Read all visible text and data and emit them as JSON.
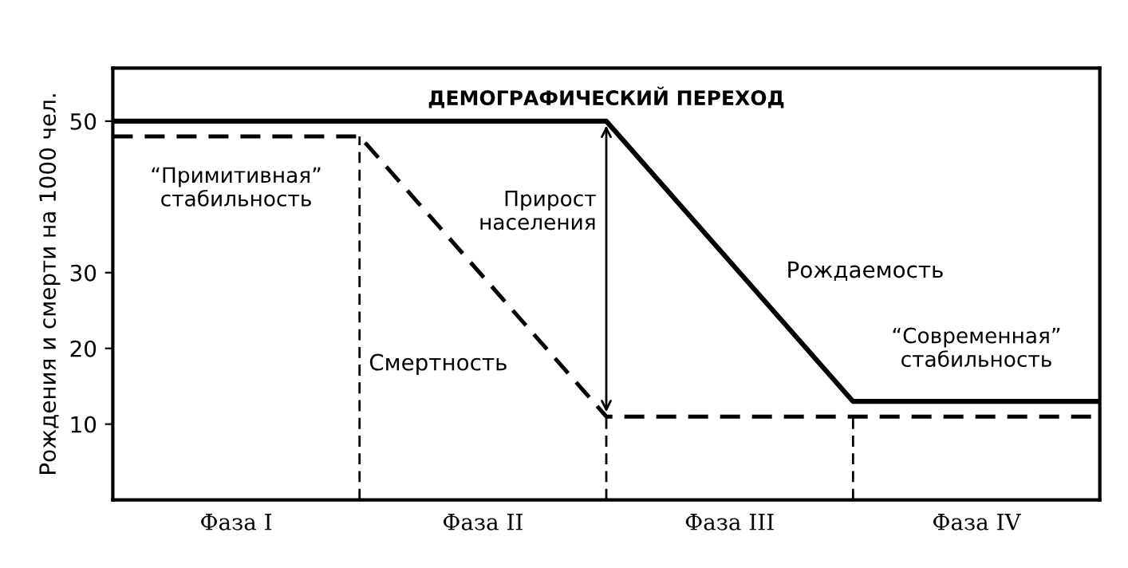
{
  "chart_data": {
    "type": "line",
    "title": "ДЕМОГРАФИЧЕСКИЙ ПЕРЕХОД",
    "ylabel": "Рождения и смерти на 1000 чел.",
    "categories": [
      null,
      "Фаза I",
      null,
      "Фаза II",
      null,
      "Фаза III",
      null,
      "Фаза IV",
      null
    ],
    "ylim": [
      0,
      57
    ],
    "yticks": [
      10,
      20,
      30,
      50
    ],
    "grid": "x",
    "marker": "none",
    "series": [
      {
        "name": "Рождаемость",
        "color": "#000000",
        "line_style": "solid",
        "values": [
          50,
          50,
          50,
          50,
          50,
          31.5,
          13,
          13,
          13
        ]
      },
      {
        "name": "Смертность",
        "color": "#000000",
        "line_style": "dashed",
        "values": [
          48,
          48,
          48,
          29.5,
          11,
          11,
          11,
          11,
          11
        ]
      }
    ],
    "annotations": [
      "“Примитивная”\nстабильность",
      "Прирост\nнаселения",
      "“Современная”\nстабильность"
    ]
  }
}
